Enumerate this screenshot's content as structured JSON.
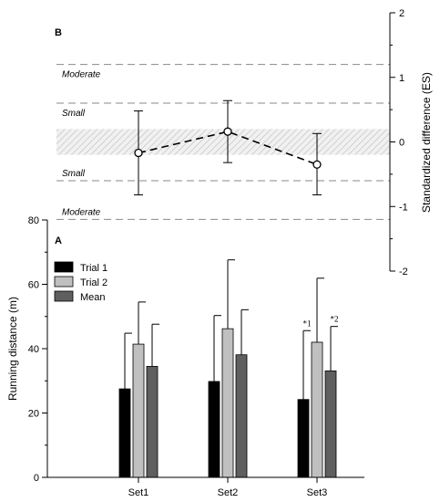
{
  "chart_data": [
    {
      "panel": "B",
      "type": "line",
      "x": [
        "Set1",
        "Set2",
        "Set3"
      ],
      "series": [
        {
          "values": [
            -0.17,
            0.16,
            -0.35
          ],
          "error_low": [
            -0.82,
            -0.32,
            -0.82
          ],
          "error_high": [
            0.48,
            0.64,
            0.13
          ]
        }
      ],
      "ylabel": "Standardized difference (ES)",
      "ylim": [
        -2,
        2
      ],
      "yticks": [
        "-2",
        "-1",
        "0",
        "1",
        "2"
      ],
      "yaxis_side": "right",
      "shaded_band": [
        -0.2,
        0.2
      ],
      "thresholds": [
        {
          "value": 1.2,
          "label": "Moderate"
        },
        {
          "value": 0.6,
          "label": "Small"
        },
        {
          "value": -0.6,
          "label": "Small"
        },
        {
          "value": -1.2,
          "label": "Moderate"
        }
      ],
      "grid": false
    },
    {
      "panel": "A",
      "type": "bar",
      "categories": [
        "Set1",
        "Set2",
        "Set3"
      ],
      "series": [
        {
          "name": "Trial 1",
          "color": "#000000",
          "values": [
            27.5,
            29.8,
            24.2
          ],
          "error_high": [
            44.8,
            50.3,
            45.6
          ]
        },
        {
          "name": "Trial 2",
          "color": "#c0c0c0",
          "values": [
            41.4,
            46.2,
            42.0
          ],
          "error_high": [
            54.5,
            67.6,
            61.9
          ]
        },
        {
          "name": "Mean",
          "color": "#5f5f5f",
          "values": [
            34.5,
            38.1,
            33.1
          ],
          "error_high": [
            47.6,
            52.1,
            46.9
          ]
        }
      ],
      "annotations": [
        {
          "category": "Set3",
          "series": "Trial 1",
          "text": "*1"
        },
        {
          "category": "Set3",
          "series": "Mean",
          "text": "*2"
        }
      ],
      "ylabel": "Running distance (m)",
      "ylim": [
        0,
        80
      ],
      "yticks": [
        "0",
        "20",
        "40",
        "60",
        "80"
      ],
      "legend_position": "top-left",
      "grid": false
    }
  ]
}
